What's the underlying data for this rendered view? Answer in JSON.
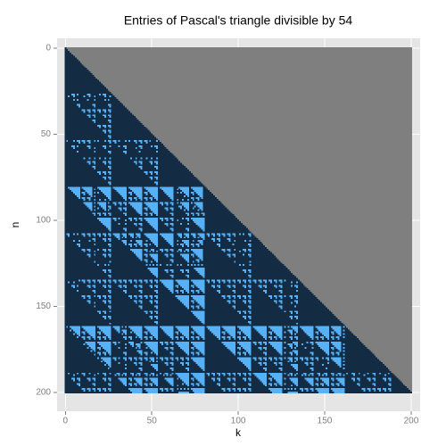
{
  "chart_data": {
    "type": "pascal_raster",
    "title": "Entries of Pascal's triangle divisible by 54",
    "x_label": "k",
    "y_label": "n",
    "divisor": 54,
    "xlim": [
      -4.8,
      205.2
    ],
    "ylim": [
      -5.7,
      210.9
    ],
    "y_reversed": true,
    "xticks": [
      0,
      50,
      100,
      150,
      200
    ],
    "yticks": [
      0,
      50,
      100,
      150,
      200
    ],
    "grid": true,
    "colors": {
      "divisible": "#56b1f7",
      "not_divisible": "#132b43",
      "na": "#7f7f7f"
    }
  }
}
